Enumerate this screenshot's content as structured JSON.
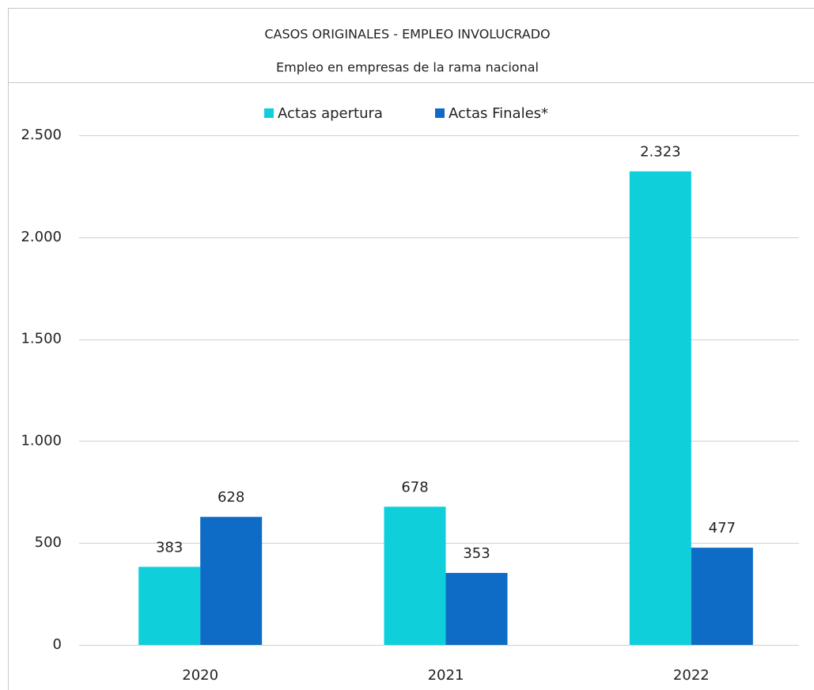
{
  "chart_data": {
    "type": "bar",
    "title": "CASOS ORIGINALES - EMPLEO INVOLUCRADO",
    "subtitle": "Empleo en empresas de la rama nacional",
    "categories": [
      "2020",
      "2021",
      "2022"
    ],
    "series": [
      {
        "name": "Actas apertura",
        "color": "#0ecfda",
        "values": [
          383,
          678,
          2323
        ],
        "value_labels": [
          "383",
          "678",
          "2.323"
        ]
      },
      {
        "name": "Actas Finales*",
        "color": "#0f6cc6",
        "values": [
          628,
          353,
          477
        ]
      }
    ],
    "ylim": [
      0,
      2500
    ],
    "yticks": [
      0,
      500,
      {
        "value": 1000,
        "label": "1.000"
      },
      {
        "value": 1500,
        "label": "1.500"
      },
      {
        "value": 2000,
        "label": "2.000"
      },
      {
        "value": 2500,
        "label": "2.500"
      }
    ],
    "grid": true,
    "legend": "top"
  }
}
